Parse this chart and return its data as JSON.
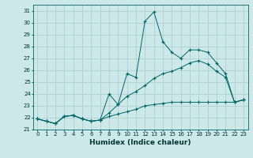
{
  "title": "",
  "xlabel": "Humidex (Indice chaleur)",
  "background_color": "#cce8e8",
  "grid_color": "#aacccc",
  "line_color": "#006666",
  "hours": [
    0,
    1,
    2,
    3,
    4,
    5,
    6,
    7,
    8,
    9,
    10,
    11,
    12,
    13,
    14,
    15,
    16,
    17,
    18,
    19,
    20,
    21,
    22,
    23
  ],
  "line1": [
    21.9,
    21.7,
    21.5,
    22.1,
    22.2,
    21.9,
    21.7,
    21.8,
    24.0,
    23.1,
    25.7,
    25.4,
    30.1,
    30.9,
    28.4,
    27.5,
    27.0,
    27.7,
    27.7,
    27.5,
    26.6,
    25.7,
    23.3,
    23.5
  ],
  "line2": [
    21.9,
    21.7,
    21.5,
    22.1,
    22.2,
    21.9,
    21.7,
    21.8,
    22.4,
    23.1,
    23.8,
    24.2,
    24.7,
    25.3,
    25.7,
    25.9,
    26.2,
    26.6,
    26.8,
    26.5,
    25.9,
    25.4,
    23.3,
    23.5
  ],
  "line3": [
    21.9,
    21.7,
    21.5,
    22.1,
    22.2,
    21.9,
    21.7,
    21.8,
    22.1,
    22.3,
    22.5,
    22.7,
    23.0,
    23.1,
    23.2,
    23.3,
    23.3,
    23.3,
    23.3,
    23.3,
    23.3,
    23.3,
    23.3,
    23.5
  ],
  "ylim": [
    21,
    31.5
  ],
  "xlim": [
    -0.5,
    23.5
  ],
  "yticks": [
    21,
    22,
    23,
    24,
    25,
    26,
    27,
    28,
    29,
    30,
    31
  ],
  "xticks": [
    0,
    1,
    2,
    3,
    4,
    5,
    6,
    7,
    8,
    9,
    10,
    11,
    12,
    13,
    14,
    15,
    16,
    17,
    18,
    19,
    20,
    21,
    22,
    23
  ]
}
